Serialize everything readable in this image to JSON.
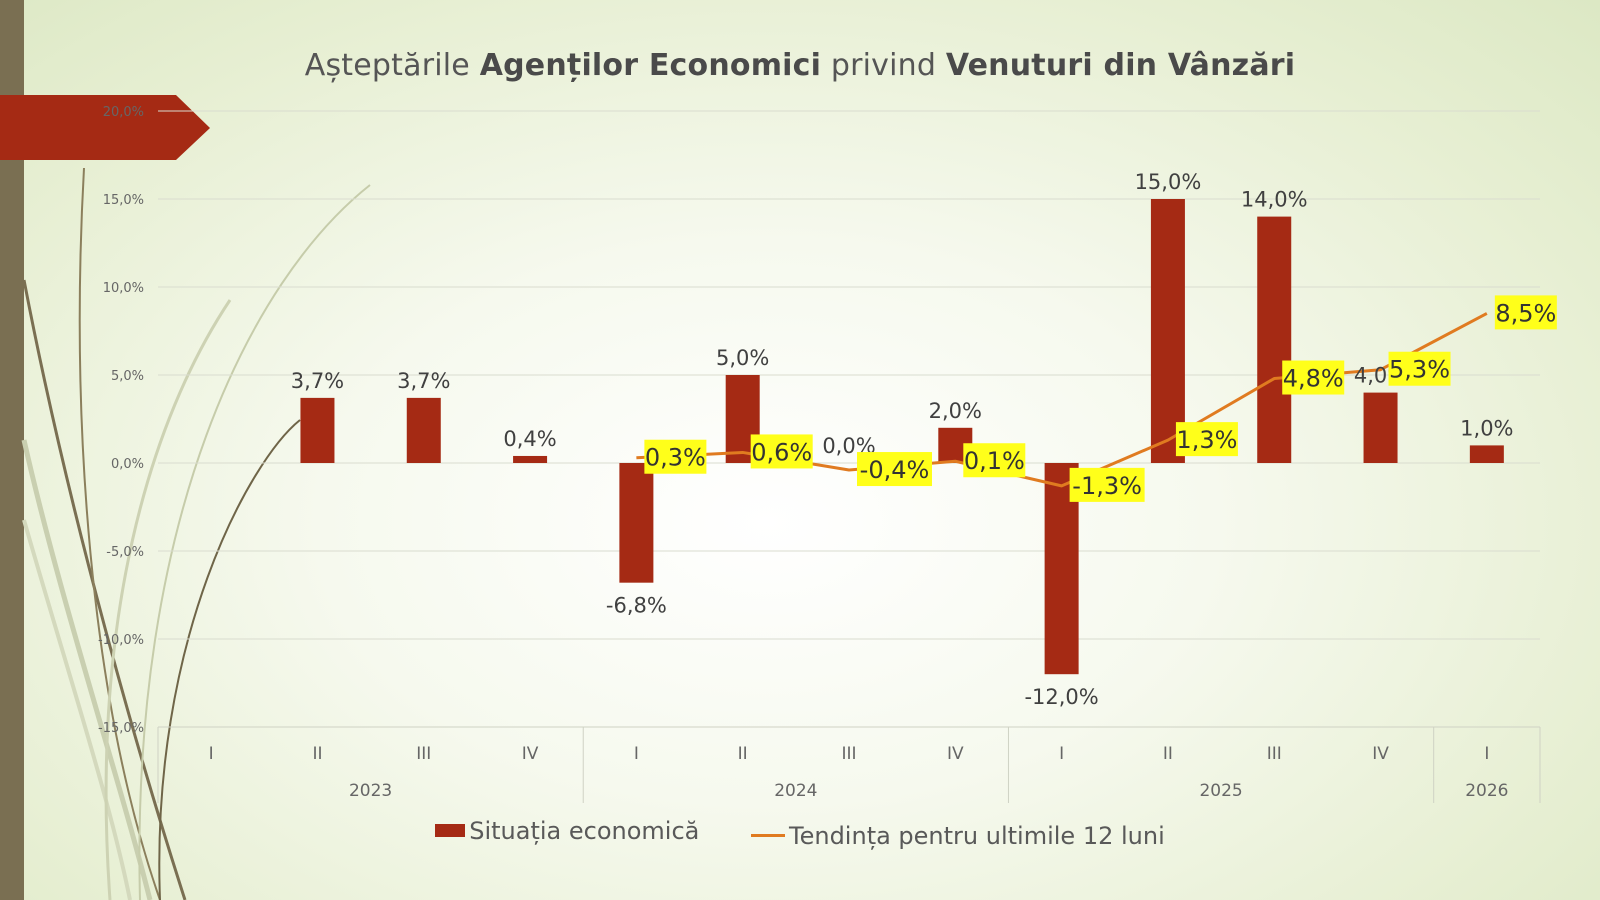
{
  "title": {
    "part1": "Așteptările ",
    "part2": "Agenților Economici",
    "part3": " privind ",
    "part4": "Venuturi din Vânzări"
  },
  "legend": {
    "bars": "Situația economică",
    "line": "Tendința  pentru ultimile 12 luni"
  },
  "colors": {
    "bar": "#a52a14",
    "line": "#e07b20",
    "highlight": "#ffff1a",
    "accent_bar": "#7a6f52"
  },
  "chart_data": {
    "type": "bar",
    "title": "Așteptările Agenților Economici privind Venuturi din Vânzări",
    "ylim": [
      -15,
      20
    ],
    "ytick_step": 5,
    "yticks": [
      "20,0%",
      "15,0%",
      "10,0%",
      "5,0%",
      "0,0%",
      "-5,0%",
      "-10,0%",
      "-15,0%"
    ],
    "categories": [
      "I",
      "II",
      "III",
      "IV",
      "I",
      "II",
      "III",
      "IV",
      "I",
      "II",
      "III",
      "IV",
      "I"
    ],
    "groups": [
      {
        "label": "2023",
        "span": 4
      },
      {
        "label": "2024",
        "span": 4
      },
      {
        "label": "2025",
        "span": 4
      },
      {
        "label": "2026",
        "span": 1
      }
    ],
    "series": [
      {
        "name": "Situația economică",
        "type": "bar",
        "values": [
          null,
          3.7,
          3.7,
          0.4,
          -6.8,
          5.0,
          0.0,
          2.0,
          -12.0,
          15.0,
          14.0,
          4.0,
          1.0
        ],
        "labels": [
          "",
          "3,7%",
          "3,7%",
          "0,4%",
          "-6,8%",
          "5,0%",
          "0,0%",
          "2,0%",
          "-12,0%",
          "15,0%",
          "14,0%",
          "4,0%",
          "1,0%"
        ]
      },
      {
        "name": "Tendința  pentru ultimile 12 luni",
        "type": "line",
        "values": [
          null,
          null,
          null,
          null,
          0.3,
          0.6,
          -0.4,
          0.1,
          -1.3,
          1.3,
          4.8,
          5.3,
          8.5
        ],
        "labels": [
          "",
          "",
          "",
          "",
          "0,3%",
          "0,6%",
          "-0,4%",
          "0,1%",
          "-1,3%",
          "1,3%",
          "4,8%",
          "5,3%",
          "8,5%"
        ]
      }
    ]
  }
}
